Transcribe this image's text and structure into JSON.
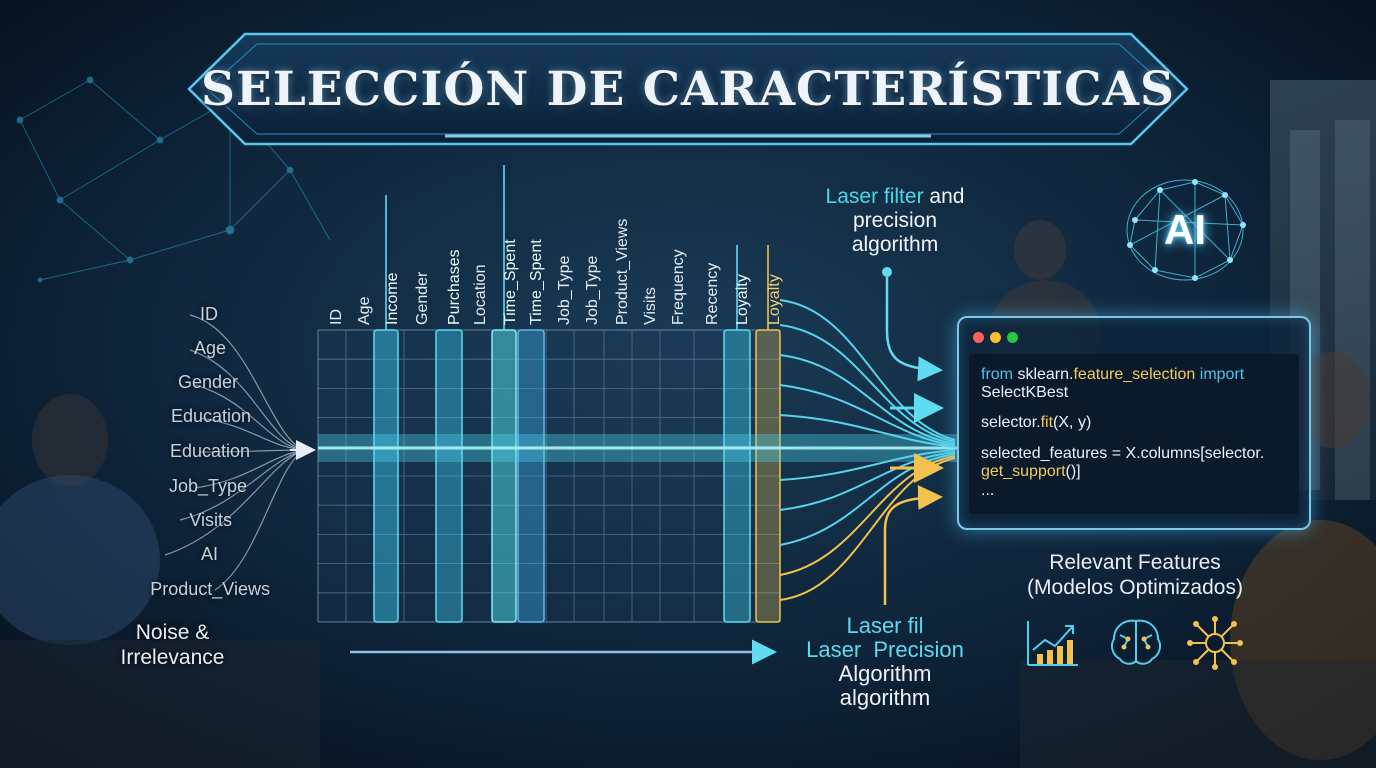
{
  "title": "SELECCIÓN DE CARACTERÍSTICAS",
  "input_features": [
    "ID",
    "Age",
    "Gender",
    "Education",
    "Education",
    "Job_Type",
    "Visits",
    "AI",
    "Product_Views"
  ],
  "noise_label": [
    "Noise &",
    "Irrelevance"
  ],
  "columns": [
    {
      "label": "ID",
      "state": "normal"
    },
    {
      "label": "Age",
      "state": "normal"
    },
    {
      "label": "Income",
      "state": "highlight"
    },
    {
      "label": "Gender",
      "state": "normal"
    },
    {
      "label": "Purchases",
      "state": "highlight"
    },
    {
      "label": "Location",
      "state": "normal"
    },
    {
      "label": "Time_Spent",
      "state": "highlight"
    },
    {
      "label": "Time_Spent",
      "state": "highlight"
    },
    {
      "label": "Job_Type",
      "state": "normal"
    },
    {
      "label": "Job_Type",
      "state": "normal"
    },
    {
      "label": "Product_Views",
      "state": "normal"
    },
    {
      "label": "Visits",
      "state": "normal"
    },
    {
      "label": "Frequency",
      "state": "normal"
    },
    {
      "label": "Recency",
      "state": "normal"
    },
    {
      "label": "Loyalty",
      "state": "highlight"
    },
    {
      "label": "Loyalty",
      "state": "gold"
    }
  ],
  "laser_top": {
    "accent": "Laser filter",
    "rest": " and",
    "line2": "precision",
    "line3": "algorithm"
  },
  "laser_bottom": {
    "line1": "Laser fil",
    "line2": "Laser  Precision",
    "line3": "Algorithm",
    "line4": "algorithm"
  },
  "code": {
    "line1_kw1": "from",
    "line1_mod": " sklearn.",
    "line1_fn": "feature_selection",
    "line1_kw2": " import",
    "line2": "SelectKBest",
    "line3_a": "selector.",
    "line3_fn": "fit",
    "line3_b": "(X, y)",
    "line4": "selected_features = X.columns[selector.",
    "line5_fn": "get_support",
    "line5_b": "()]",
    "line6": "..."
  },
  "ai_badge": "AI",
  "relevant": [
    "Relevant Features",
    "(Modelos Optimizados)"
  ],
  "icons": [
    "bar-chart-growth-icon",
    "brain-circuit-icon",
    "network-nodes-icon"
  ],
  "colors": {
    "cyan": "#38d4ec",
    "gold": "#f2c14e",
    "background": "#0a1a2c"
  }
}
